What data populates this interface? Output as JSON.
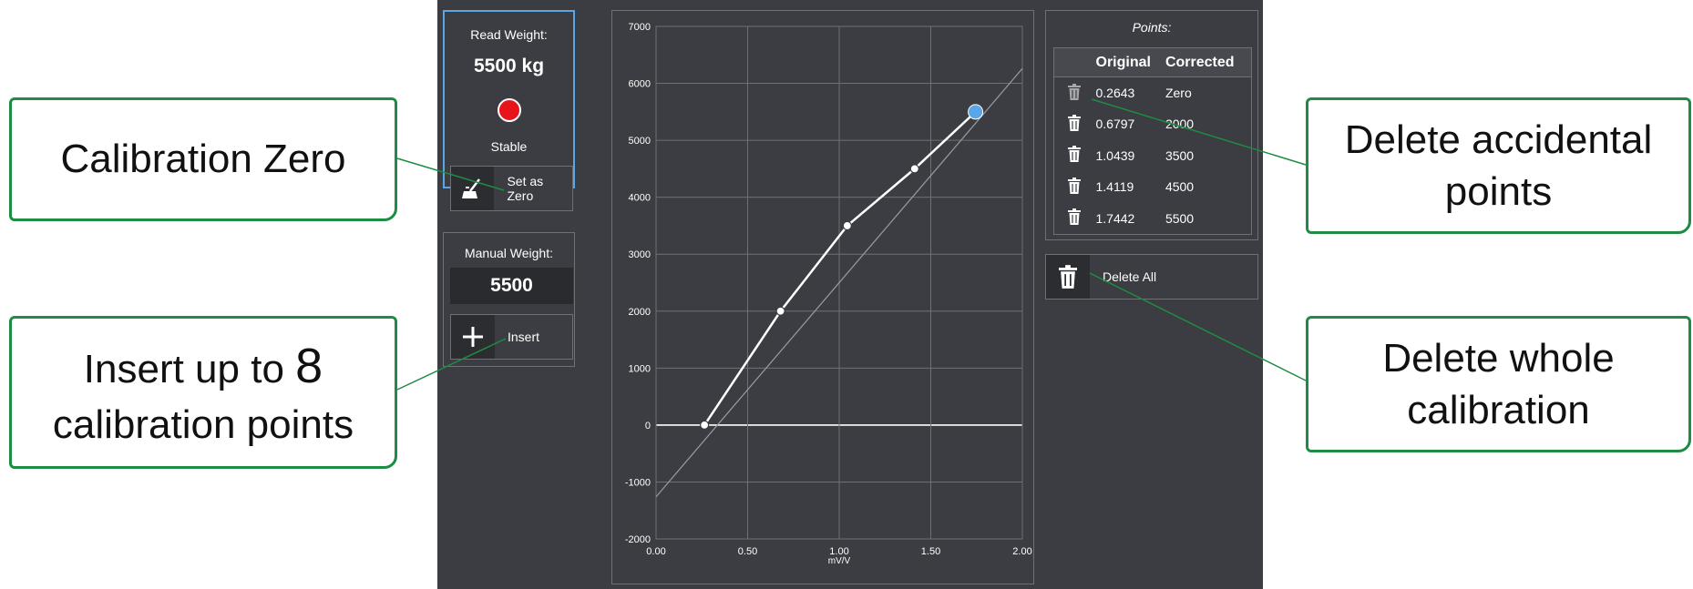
{
  "read_weight": {
    "label": "Read Weight:",
    "value": "5500 kg",
    "status": "Stable",
    "status_color": "#e8141c",
    "set_zero_label": "Set as Zero"
  },
  "manual_weight": {
    "label": "Manual Weight:",
    "value": "5500",
    "insert_label": "Insert"
  },
  "points_panel": {
    "title": "Points:",
    "columns": [
      "Original",
      "Corrected"
    ],
    "rows": [
      {
        "original": "0.2643",
        "corrected": "Zero"
      },
      {
        "original": "0.6797",
        "corrected": "2000"
      },
      {
        "original": "1.0439",
        "corrected": "3500"
      },
      {
        "original": "1.4119",
        "corrected": "4500"
      },
      {
        "original": "1.7442",
        "corrected": "5500"
      }
    ],
    "delete_all_label": "Delete All"
  },
  "callouts": {
    "calibration_zero": "Calibration Zero",
    "insert_line1_prefix": "Insert up to ",
    "insert_line1_num": "8",
    "insert_line2": "calibration points",
    "delete_points_line1": "Delete accidental",
    "delete_points_line2": "points",
    "delete_whole_line1": "Delete whole",
    "delete_whole_line2": "calibration"
  },
  "colors": {
    "callout_border": "#1e8c44",
    "highlight_point": "#5aa6e6",
    "app_background": "#3b3d42"
  },
  "chart_data": {
    "type": "line",
    "xlabel": "mV/V",
    "ylabel": "",
    "xlim": [
      0.0,
      2.0
    ],
    "ylim": [
      -2000,
      7000
    ],
    "x_ticks": [
      "0.00",
      "0.50",
      "1.00",
      "1.50",
      "2.00"
    ],
    "y_ticks": [
      "7000",
      "6000",
      "5000",
      "4000",
      "3000",
      "2000",
      "1000",
      "0",
      "-1000",
      "-2000"
    ],
    "grid": true,
    "series": [
      {
        "x": [
          0.2643,
          0.6797,
          1.0439,
          1.4119,
          1.7442
        ],
        "y": [
          0,
          2000,
          3500,
          4500,
          5500
        ],
        "color": "#ffffff",
        "highlighted_last": true
      },
      {
        "x": [
          0.0,
          2.0
        ],
        "y": [
          -1260,
          6260
        ],
        "color": "#9a9ca0"
      }
    ]
  }
}
